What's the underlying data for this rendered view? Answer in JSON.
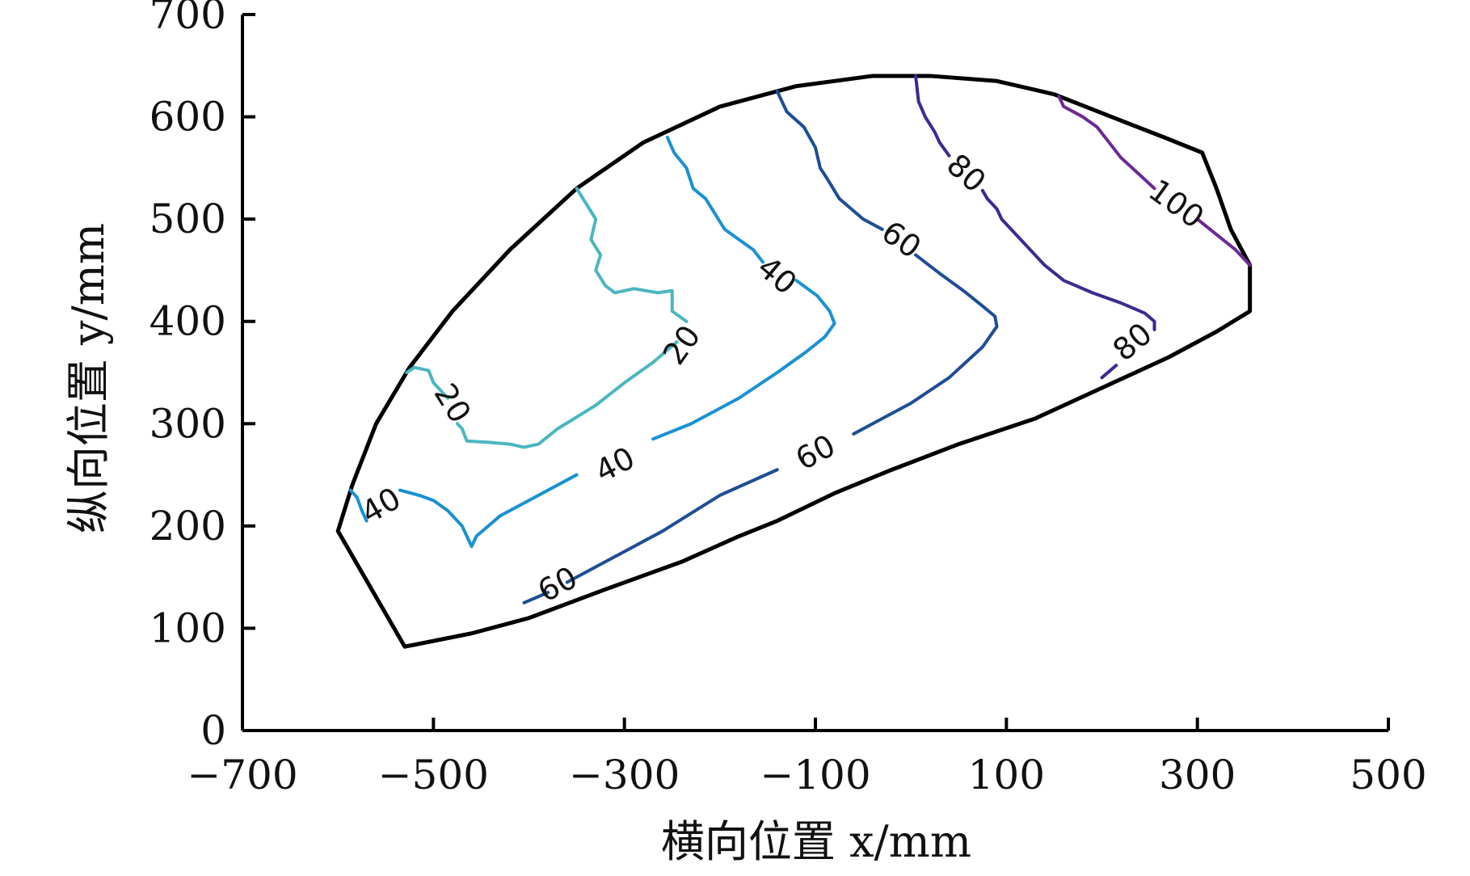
{
  "chart_data": {
    "type": "contour",
    "xlabel": "横向位置 x/mm",
    "ylabel": "纵向位置 y/mm",
    "xlim": [
      -700,
      500
    ],
    "ylim": [
      0,
      700
    ],
    "xticks": [
      -700,
      -500,
      -300,
      -100,
      100,
      300,
      500
    ],
    "yticks": [
      0,
      100,
      200,
      300,
      400,
      500,
      600,
      700
    ],
    "grid": false,
    "boundary": [
      [
        -600,
        195
      ],
      [
        -585,
        240
      ],
      [
        -560,
        300
      ],
      [
        -525,
        355
      ],
      [
        -480,
        410
      ],
      [
        -420,
        470
      ],
      [
        -350,
        530
      ],
      [
        -280,
        575
      ],
      [
        -200,
        610
      ],
      [
        -120,
        630
      ],
      [
        -40,
        640
      ],
      [
        20,
        640
      ],
      [
        90,
        635
      ],
      [
        150,
        622
      ],
      [
        210,
        600
      ],
      [
        265,
        580
      ],
      [
        305,
        565
      ],
      [
        320,
        530
      ],
      [
        335,
        490
      ],
      [
        355,
        455
      ],
      [
        355,
        410
      ],
      [
        320,
        390
      ],
      [
        270,
        365
      ],
      [
        200,
        335
      ],
      [
        130,
        305
      ],
      [
        50,
        280
      ],
      [
        -20,
        255
      ],
      [
        -80,
        232
      ],
      [
        -140,
        205
      ],
      [
        -180,
        190
      ],
      [
        -240,
        165
      ],
      [
        -320,
        138
      ],
      [
        -400,
        110
      ],
      [
        -460,
        95
      ],
      [
        -530,
        82
      ],
      [
        -600,
        195
      ]
    ],
    "series": [
      {
        "level": "20",
        "color": "#4bb6bf",
        "segments": [
          [
            [
              -350,
              530
            ],
            [
              -340,
              515
            ],
            [
              -330,
              500
            ],
            [
              -335,
              480
            ],
            [
              -325,
              465
            ],
            [
              -330,
              450
            ],
            [
              -320,
              435
            ],
            [
              -310,
              428
            ],
            [
              -290,
              432
            ],
            [
              -265,
              428
            ],
            [
              -250,
              430
            ],
            [
              -250,
              410
            ],
            [
              -235,
              400
            ]
          ],
          [
            [
              -245,
              380
            ],
            [
              -270,
              360
            ],
            [
              -300,
              340
            ],
            [
              -330,
              318
            ],
            [
              -370,
              295
            ],
            [
              -390,
              280
            ],
            [
              -405,
              277
            ],
            [
              -420,
              280
            ],
            [
              -445,
              282
            ],
            [
              -465,
              283
            ],
            [
              -470,
              295
            ],
            [
              -475,
              300
            ]
          ],
          [
            [
              -485,
              325
            ],
            [
              -500,
              340
            ],
            [
              -505,
              352
            ],
            [
              -520,
              355
            ],
            [
              -528,
              350
            ]
          ]
        ]
      },
      {
        "level": "40",
        "color": "#1a91d2",
        "segments": [
          [
            [
              -255,
              580
            ],
            [
              -248,
              565
            ],
            [
              -235,
              550
            ],
            [
              -228,
              530
            ],
            [
              -215,
              520
            ],
            [
              -205,
              505
            ],
            [
              -195,
              490
            ],
            [
              -180,
              480
            ],
            [
              -165,
              470
            ],
            [
              -155,
              458
            ]
          ],
          [
            [
              -120,
              440
            ],
            [
              -98,
              425
            ],
            [
              -85,
              410
            ],
            [
              -80,
              398
            ],
            [
              -90,
              385
            ],
            [
              -110,
              370
            ],
            [
              -140,
              350
            ],
            [
              -180,
              325
            ],
            [
              -230,
              300
            ],
            [
              -270,
              285
            ]
          ],
          [
            [
              -350,
              250
            ],
            [
              -400,
              225
            ],
            [
              -430,
              210
            ],
            [
              -455,
              190
            ],
            [
              -460,
              180
            ],
            [
              -470,
              200
            ],
            [
              -485,
              215
            ],
            [
              -500,
              225
            ],
            [
              -515,
              230
            ],
            [
              -535,
              235
            ]
          ],
          [
            [
              -570,
              205
            ],
            [
              -575,
              215
            ],
            [
              -580,
              228
            ],
            [
              -587,
              235
            ]
          ]
        ]
      },
      {
        "level": "60",
        "color": "#1f4d96",
        "segments": [
          [
            [
              -140,
              625
            ],
            [
              -130,
              605
            ],
            [
              -112,
              590
            ],
            [
              -100,
              570
            ],
            [
              -95,
              550
            ],
            [
              -88,
              540
            ],
            [
              -75,
              520
            ],
            [
              -50,
              500
            ],
            [
              -30,
              490
            ]
          ],
          [
            [
              5,
              465
            ],
            [
              30,
              447
            ],
            [
              55,
              430
            ],
            [
              75,
              415
            ],
            [
              88,
              405
            ],
            [
              90,
              395
            ],
            [
              75,
              375
            ],
            [
              40,
              345
            ],
            [
              0,
              320
            ],
            [
              -40,
              300
            ],
            [
              -60,
              290
            ]
          ],
          [
            [
              -140,
              255
            ],
            [
              -200,
              230
            ],
            [
              -260,
              195
            ],
            [
              -320,
              165
            ],
            [
              -360,
              145
            ]
          ],
          [
            [
              -380,
              135
            ],
            [
              -405,
              125
            ]
          ]
        ]
      },
      {
        "level": "80",
        "color": "#3a2b91",
        "segments": [
          [
            [
              5,
              640
            ],
            [
              8,
              615
            ],
            [
              15,
              600
            ],
            [
              25,
              585
            ],
            [
              30,
              575
            ],
            [
              40,
              562
            ]
          ],
          [
            [
              75,
              528
            ],
            [
              80,
              520
            ],
            [
              90,
              510
            ],
            [
              95,
              500
            ],
            [
              110,
              485
            ],
            [
              125,
              470
            ],
            [
              140,
              455
            ],
            [
              160,
              440
            ],
            [
              190,
              428
            ],
            [
              220,
              418
            ],
            [
              245,
              408
            ],
            [
              255,
              400
            ],
            [
              255,
              392
            ]
          ],
          [
            [
              215,
              357
            ],
            [
              200,
              345
            ]
          ]
        ]
      },
      {
        "level": "100",
        "color": "#6a2a93",
        "segments": [
          [
            [
              155,
              620
            ],
            [
              160,
              610
            ],
            [
              180,
              600
            ],
            [
              195,
              590
            ],
            [
              205,
              578
            ],
            [
              220,
              560
            ],
            [
              240,
              543
            ],
            [
              255,
              530
            ]
          ],
          [
            [
              300,
              500
            ],
            [
              320,
              485
            ],
            [
              340,
              470
            ],
            [
              355,
              455
            ]
          ]
        ]
      }
    ],
    "contour_labels": [
      {
        "text": "20",
        "x": -240,
        "y": 377,
        "rotation": -55
      },
      {
        "text": "20",
        "x": -480,
        "y": 320,
        "rotation": 58
      },
      {
        "text": "40",
        "x": -140,
        "y": 445,
        "rotation": 40
      },
      {
        "text": "40",
        "x": -310,
        "y": 260,
        "rotation": -27
      },
      {
        "text": "40",
        "x": -555,
        "y": 220,
        "rotation": -30
      },
      {
        "text": "60",
        "x": -10,
        "y": 480,
        "rotation": 35
      },
      {
        "text": "60",
        "x": -100,
        "y": 272,
        "rotation": -28
      },
      {
        "text": "60",
        "x": -370,
        "y": 143,
        "rotation": -28
      },
      {
        "text": "80",
        "x": 58,
        "y": 545,
        "rotation": 42
      },
      {
        "text": "80",
        "x": 232,
        "y": 380,
        "rotation": -40
      },
      {
        "text": "100",
        "x": 278,
        "y": 515,
        "rotation": 36
      }
    ]
  }
}
